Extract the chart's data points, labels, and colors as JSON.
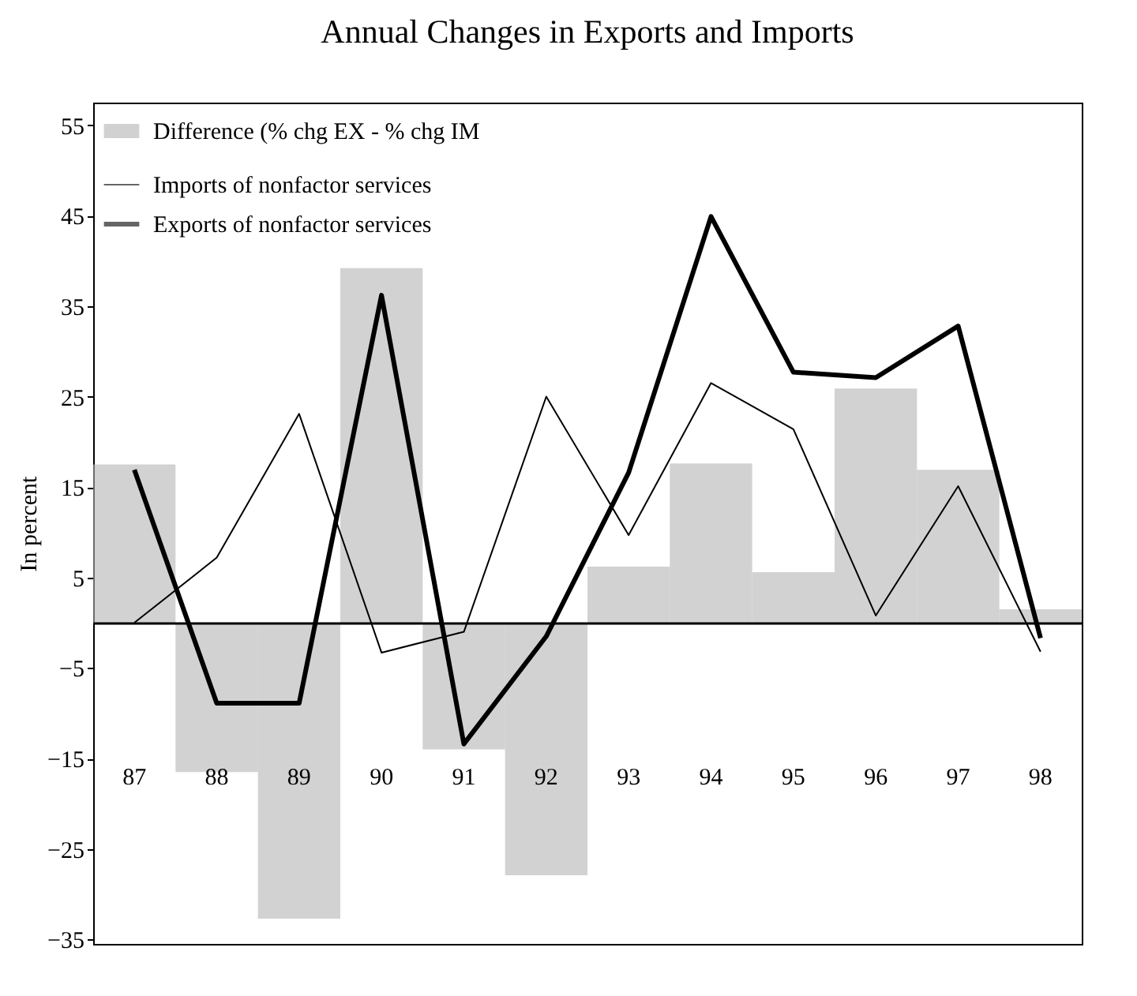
{
  "chart_data": {
    "type": "bar",
    "title": "Annual Changes in Exports and Imports",
    "ylabel": "In percent",
    "categories": [
      "87",
      "88",
      "89",
      "90",
      "91",
      "92",
      "93",
      "94",
      "95",
      "96",
      "97",
      "98"
    ],
    "series": [
      {
        "name": "Difference  (% chg EX - % chg IM",
        "color": "#b4b4b4",
        "values": [
          17.5,
          -16.5,
          -32.7,
          39.2,
          -14,
          -27.9,
          6.2,
          17.6,
          5.6,
          25.9,
          16.9,
          1.5
        ]
      },
      {
        "name": "Imports of nonfactor services",
        "type": "line",
        "color": "#000000",
        "values": [
          0,
          7.2,
          23.1,
          -3.3,
          -1,
          25,
          9.7,
          26.5,
          21.4,
          0.8,
          15.1,
          -3.2
        ]
      },
      {
        "name": "Exports of nonfactor services",
        "type": "line",
        "color": "#000000",
        "values": [
          16.9,
          -8.9,
          -8.9,
          36.2,
          -13.4,
          -1.5,
          16.6,
          44.9,
          27.7,
          27.1,
          32.8,
          -1.7
        ]
      }
    ],
    "ylim": [
      -35.5,
      57.5
    ],
    "yticks": [
      -35,
      -25,
      -15,
      -5,
      5,
      15,
      25,
      35,
      45,
      55
    ],
    "legend": "top left",
    "grid": false
  }
}
